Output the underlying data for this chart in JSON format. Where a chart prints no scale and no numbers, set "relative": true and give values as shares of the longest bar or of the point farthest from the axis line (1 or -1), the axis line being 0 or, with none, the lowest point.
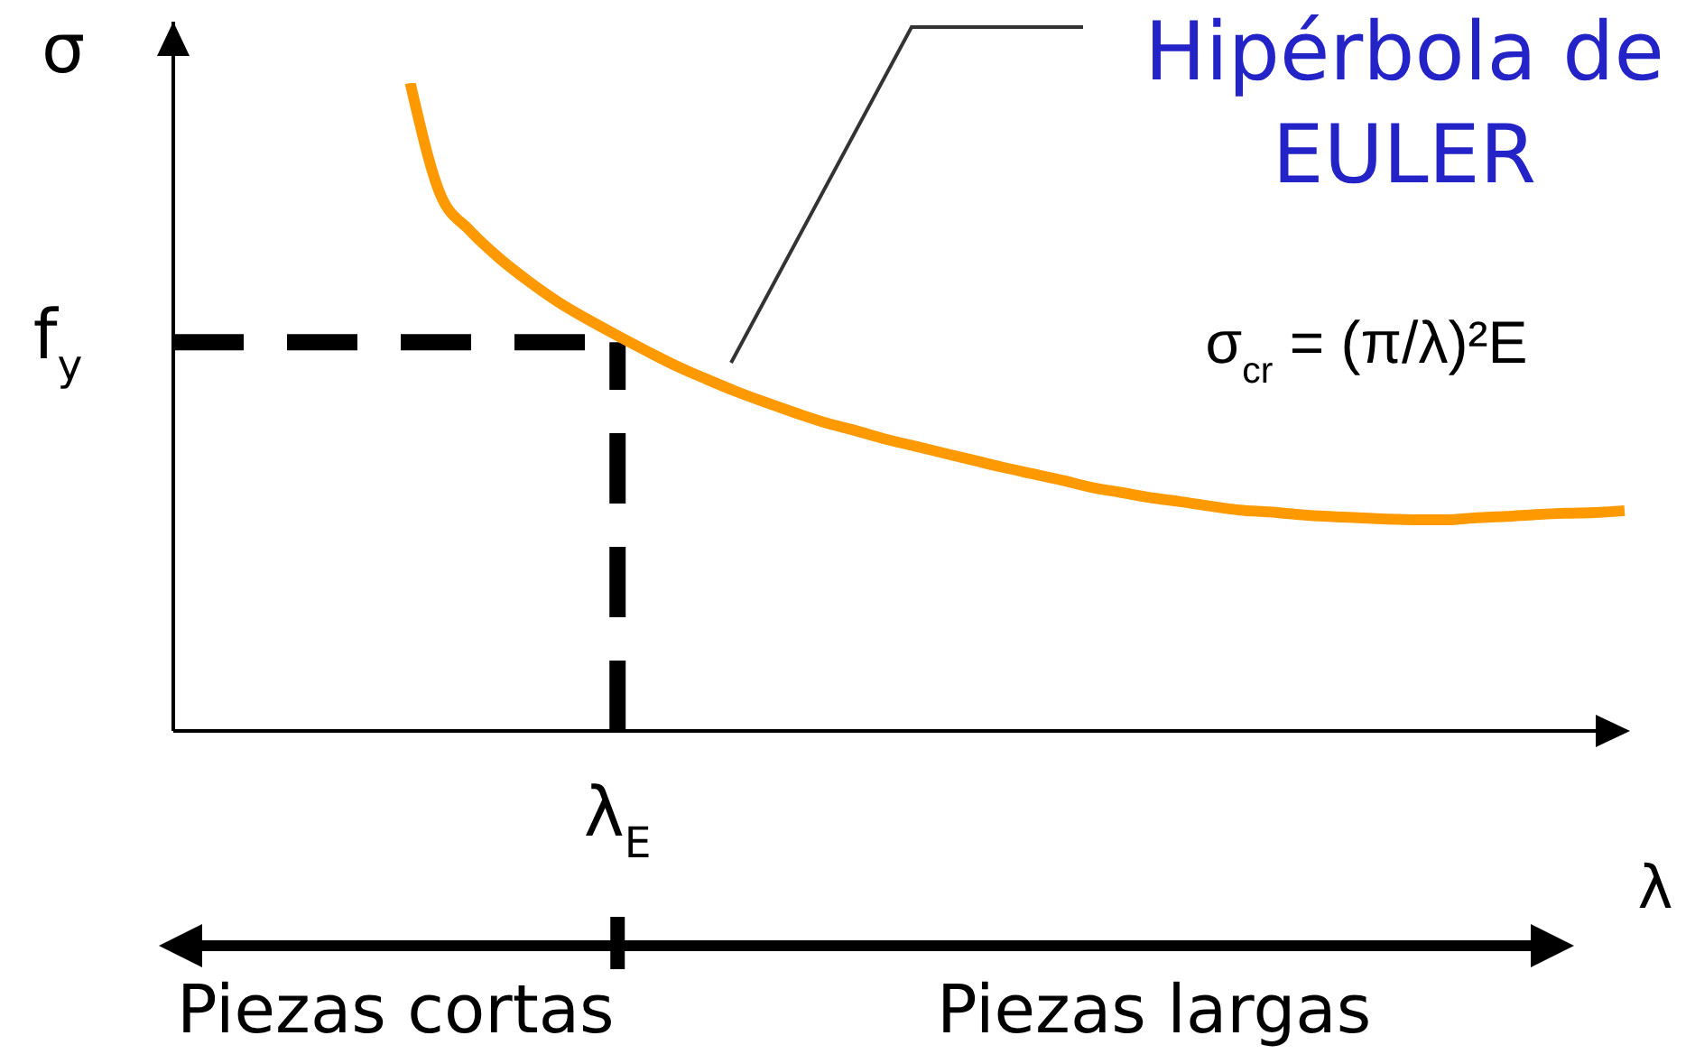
{
  "chart_data": {
    "type": "line",
    "xlabel": "λ",
    "ylabel": "σ",
    "relative": true,
    "color": "#ff9900",
    "marker": "none",
    "line_style": "solid",
    "categories": [
      null,
      null,
      null,
      null,
      null,
      null,
      null,
      null,
      null,
      null,
      null,
      null,
      null,
      null,
      null,
      null,
      null,
      null,
      null,
      null,
      null,
      null,
      null,
      null,
      null,
      null,
      null,
      null,
      null,
      null,
      null,
      null,
      null,
      null,
      null,
      null,
      null,
      null,
      null,
      null,
      null,
      null,
      null,
      null,
      null,
      null,
      null,
      null,
      null,
      null
    ],
    "values": [
      null,
      null,
      null,
      null,
      null,
      null,
      null,
      null,
      1,
      0.83,
      0.773,
      0.73,
      0.694,
      0.662,
      0.635,
      0.61,
      0.586,
      0.563,
      0.543,
      0.524,
      0.507,
      0.491,
      0.476,
      0.464,
      0.451,
      0.44,
      0.429,
      0.418,
      0.407,
      0.397,
      0.387,
      0.376,
      0.368,
      0.36,
      0.354,
      0.347,
      0.341,
      0.338,
      0.334,
      0.331,
      0.329,
      0.327,
      0.326,
      0.326,
      0.329,
      0.331,
      0.334,
      0.336,
      0.337,
      0.34
    ],
    "ref_lines": [
      {
        "axis": "y",
        "value": 0.6,
        "label": "f$_{y}$",
        "color": "#000000",
        "line_style": "dashed"
      },
      {
        "axis": "x",
        "value": "λ$_{E}$",
        "color": "#000000",
        "line_style": "dashed"
      }
    ],
    "annotations": [
      "Hipérbola de EULER",
      "σ$_{cr}$ = (π/λ)²E",
      "Piezas cortas",
      "Piezas largas"
    ]
  }
}
